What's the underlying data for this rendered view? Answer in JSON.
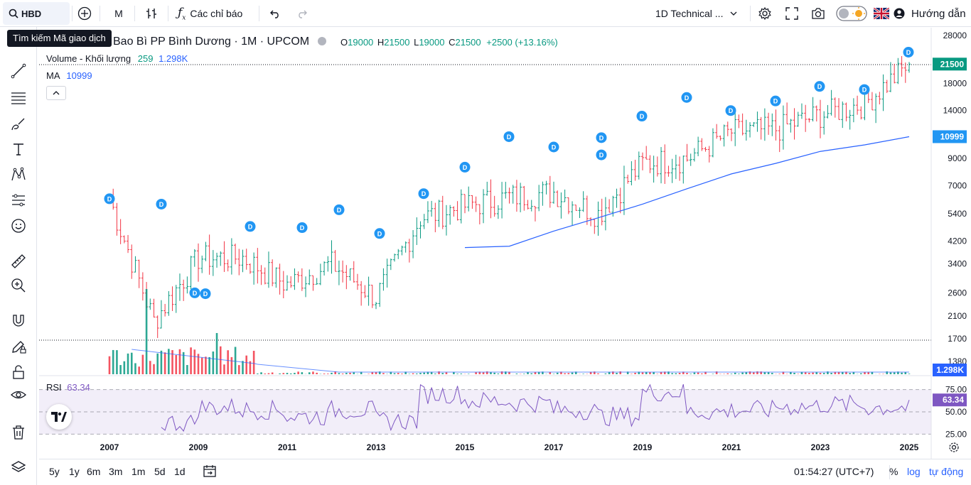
{
  "topbar": {
    "symbol": "HBD",
    "interval": "M",
    "indicators_label": "Các chỉ báo",
    "layout_label": "1D Technical ...",
    "guide_label": "Hướng dẫn"
  },
  "tooltip": "Tìm kiếm Mã giao dịch",
  "legend": {
    "title": "Bao Bì PP Bình Dương · 1M · UPCOM",
    "open_label": "O",
    "open": "19000",
    "high_label": "H",
    "high": "21500",
    "low_label": "L",
    "low": "19000",
    "close_label": "C",
    "close": "21500",
    "change": "+2500 (+13.16%)",
    "volume_label": "Volume - Khối lượng",
    "volume_value": "259",
    "volume_ma": "1.298K",
    "ma_label": "MA",
    "ma_value": "10999",
    "rsi_label": "RSI",
    "rsi_value": "63.34"
  },
  "price_axis": [
    "28000",
    "21500",
    "18000",
    "14000",
    "10999",
    "9000",
    "7000",
    "5400",
    "4200",
    "3400",
    "2600",
    "2100",
    "1700",
    "1380",
    "1.298K"
  ],
  "price_labels": {
    "last": "21500",
    "ma": "10999",
    "volume": "1.298K",
    "rsi": "63.34"
  },
  "rsi_axis": [
    "75.00",
    "50.00",
    "25.00"
  ],
  "time_axis": [
    "2007",
    "2009",
    "2011",
    "2013",
    "2015",
    "2017",
    "2019",
    "2021",
    "2023",
    "2025"
  ],
  "bottombar": {
    "ranges": [
      "5y",
      "1y",
      "6m",
      "3m",
      "1m",
      "5d",
      "1d"
    ],
    "time": "01:54:27 (UTC+7)",
    "percent": "%",
    "log": "log",
    "auto": "tự động"
  },
  "dividend_marker": "D",
  "colors": {
    "up": "#089981",
    "down": "#f23645",
    "ma": "#2962ff",
    "rsi": "#7e57c2",
    "accent": "#2962ff"
  },
  "chart_data": {
    "type": "candlestick",
    "series": [
      {
        "name": "HBD",
        "interval": "1M",
        "scale": "log",
        "x": [
          "2007",
          "2008",
          "2009",
          "2010",
          "2011",
          "2012",
          "2013",
          "2014",
          "2015",
          "2016",
          "2017",
          "2018",
          "2019",
          "2020",
          "2021",
          "2022",
          "2023",
          "2024",
          "2025"
        ],
        "close": [
          6200,
          2000,
          3600,
          3600,
          2800,
          3400,
          2500,
          5200,
          5800,
          6300,
          6600,
          5400,
          8600,
          9000,
          11500,
          11800,
          13500,
          15000,
          21500
        ]
      }
    ],
    "ma": [
      null,
      null,
      null,
      null,
      null,
      null,
      null,
      null,
      3950,
      4000,
      4600,
      5200,
      5900,
      6800,
      7800,
      8600,
      9600,
      10200,
      10999
    ],
    "rsi": [
      null,
      38,
      55,
      52,
      45,
      52,
      40,
      70,
      62,
      60,
      52,
      45,
      72,
      50,
      52,
      56,
      58,
      55,
      63.34
    ],
    "rsi_levels": [
      75,
      50,
      25
    ]
  }
}
